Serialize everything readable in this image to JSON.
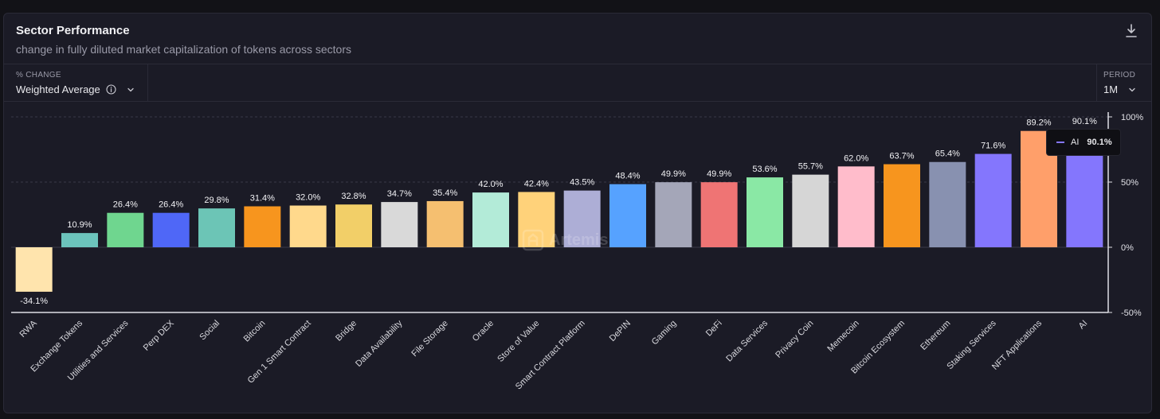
{
  "header": {
    "title": "Sector Performance",
    "subtitle": "change in fully diluted market capitalization of tokens across sectors"
  },
  "controls": {
    "metric_label": "% CHANGE",
    "metric_value": "Weighted Average",
    "period_label": "PERIOD",
    "period_value": "1M"
  },
  "tooltip": {
    "series": "AI",
    "value": "90.1%"
  },
  "watermark": "Artemis",
  "colors": {
    "background": "#1b1b26",
    "grid": "#3a3a48",
    "axis": "#e0e0e6"
  },
  "chart_data": {
    "type": "bar",
    "title": "Sector Performance",
    "categories": [
      "RWA",
      "Exchange Tokens",
      "Utilities and Services",
      "Perp DEX",
      "Social",
      "Bitcoin",
      "Gen 1 Smart Contract",
      "Bridge",
      "Data Availability",
      "File Storage",
      "Oracle",
      "Store of Value",
      "Smart Contract Platform",
      "DePIN",
      "Gaming",
      "DeFi",
      "Data Services",
      "Privacy Coin",
      "Memecoin",
      "Bitcoin Ecosystem",
      "Ethereum",
      "Staking Services",
      "NFT Applications",
      "AI"
    ],
    "values": [
      -34.1,
      10.9,
      26.4,
      26.4,
      29.8,
      31.4,
      32.0,
      32.8,
      34.7,
      35.4,
      42.0,
      42.4,
      43.5,
      48.4,
      49.9,
      49.9,
      53.6,
      55.7,
      62.0,
      63.7,
      65.4,
      71.6,
      89.2,
      90.1
    ],
    "labels": [
      "-34.1%",
      "10.9%",
      "26.4%",
      "26.4%",
      "29.8%",
      "31.4%",
      "32.0%",
      "32.8%",
      "34.7%",
      "35.4%",
      "42.0%",
      "42.4%",
      "43.5%",
      "48.4%",
      "49.9%",
      "49.9%",
      "53.6%",
      "55.7%",
      "62.0%",
      "63.7%",
      "65.4%",
      "71.6%",
      "89.2%",
      "90.1%"
    ],
    "bar_colors": [
      "#ffe4ad",
      "#6cc4bc",
      "#6fd68f",
      "#4f67f7",
      "#6cc5b6",
      "#f7951e",
      "#ffd98c",
      "#f2cf68",
      "#d9d9d9",
      "#f5bf70",
      "#b3ebd8",
      "#ffd27a",
      "#adaed6",
      "#56a2ff",
      "#a4a6b8",
      "#ef7474",
      "#8ae8a5",
      "#d6d6d6",
      "#ffbccb",
      "#f7951e",
      "#8891b0",
      "#8476fd",
      "#ff9f6a",
      "#8476fd"
    ],
    "yticks": [
      100,
      50,
      0,
      -50
    ],
    "ytick_labels": [
      "100%",
      "50%",
      "0%",
      "-50%"
    ],
    "ylim": [
      -50,
      100
    ],
    "grid": true,
    "xlabel": "",
    "ylabel": ""
  }
}
